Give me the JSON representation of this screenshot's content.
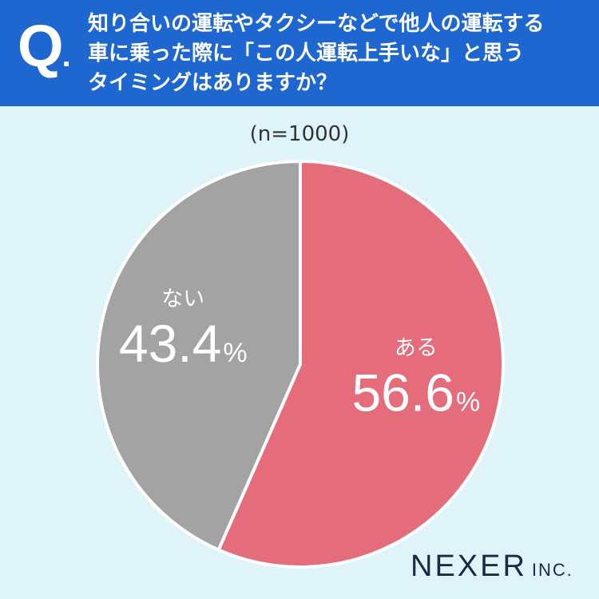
{
  "header": {
    "q_mark": "Q",
    "q_dot": ".",
    "question_lines": [
      "知り合いの運転やタクシーなどで他人の運転する",
      "車に乗った際に「この人運転上手いな」と思う",
      "タイミングはありますか？"
    ]
  },
  "sample_size": "(n=1000)",
  "chart_data": {
    "type": "pie",
    "title": "",
    "slices": [
      {
        "label": "ある",
        "value": 56.6,
        "display": "56.6",
        "unit": "%",
        "color": "#e56c7b"
      },
      {
        "label": "ない",
        "value": 43.4,
        "display": "43.4",
        "unit": "%",
        "color": "#a3a3a3"
      }
    ],
    "start": "12 o'clock, clockwise"
  },
  "logo": {
    "main": "NEXER",
    "sub": "INC."
  },
  "colors": {
    "header_bg": "#1e67d0",
    "page_bg": "#dff4f9",
    "slice_separator": "#ffffff"
  }
}
